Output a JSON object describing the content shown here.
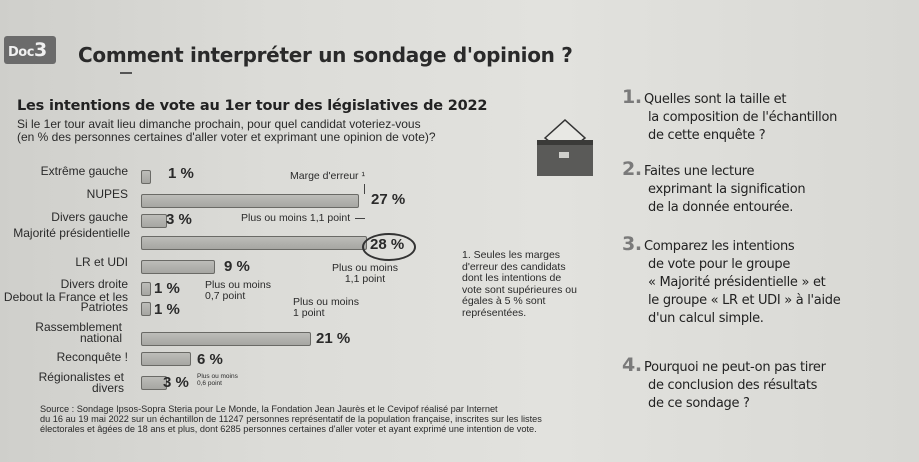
{
  "doc_badge": {
    "prefix": "Doc",
    "number": "3"
  },
  "title": "Comment interpréter un sondage d'opinion ?",
  "subtitle": "Les intentions de vote au 1er tour des législatives de 2022",
  "question": [
    "Si le 1er tour avait lieu dimanche prochain, pour quel candidat voteriez-vous",
    "(en % des personnes certaines d'aller voter et exprimant une opinion de vote)?"
  ],
  "chart_data": {
    "type": "bar",
    "orientation": "horizontal",
    "categories": [
      "Extrême gauche",
      "NUPES",
      "Divers gauche",
      "Majorité présidentielle",
      "LR et UDI",
      "Divers droite",
      "Debout la France et les Patriotes",
      "Rassemblement national",
      "Reconquête !",
      "Régionalistes et divers"
    ],
    "values": [
      1,
      27,
      3,
      28,
      9,
      1,
      1,
      21,
      6,
      3
    ],
    "value_labels": [
      "1 %",
      "27 %",
      "3 %",
      "28 %",
      "9 %",
      "1 %",
      "1 %",
      "21 %",
      "6 %",
      "3 %"
    ],
    "highlighted": "28 %",
    "annotations": [
      "Marge d'erreur ¹",
      "Plus ou moins 1,1 point",
      "Plus ou moins 1,1 point",
      "Plus ou moins 0,7 point",
      "Plus ou moins 1 point",
      "Plus ou moins 0,6 point"
    ]
  },
  "footnote": "1. Seules les marges d'erreur des candidats dont les intentions de vote sont supérieures ou égales à 5 % sont représentées.",
  "source": [
    "Source : Sondage Ipsos-Sopra Steria pour Le Monde, la Fondation Jean Jaurès et le Cevipof réalisé par Internet",
    "du 16 au 19 mai 2022 sur un échantillon de 11247 personnes représentatif de la population française, inscrites sur les listes",
    "électorales et âgées de 18 ans et plus, dont 6285 personnes certaines d'aller voter et ayant exprimé une intention de vote."
  ],
  "questions": [
    {
      "num": "1.",
      "lines": [
        "Quelles sont la taille et",
        "la composition de l'échantillon",
        "de cette enquête ?"
      ]
    },
    {
      "num": "2.",
      "lines": [
        "Faites une lecture",
        "exprimant la signification",
        "de la donnée entourée."
      ]
    },
    {
      "num": "3.",
      "lines": [
        "Comparez les intentions",
        "de vote pour le groupe",
        "« Majorité présidentielle » et",
        "le groupe « LR et UDI » à l'aide",
        "d'un calcul simple."
      ]
    },
    {
      "num": "4.",
      "lines": [
        "Pourquoi ne peut-on pas tirer",
        "de conclusion des résultats",
        "de ce sondage ?"
      ]
    }
  ]
}
